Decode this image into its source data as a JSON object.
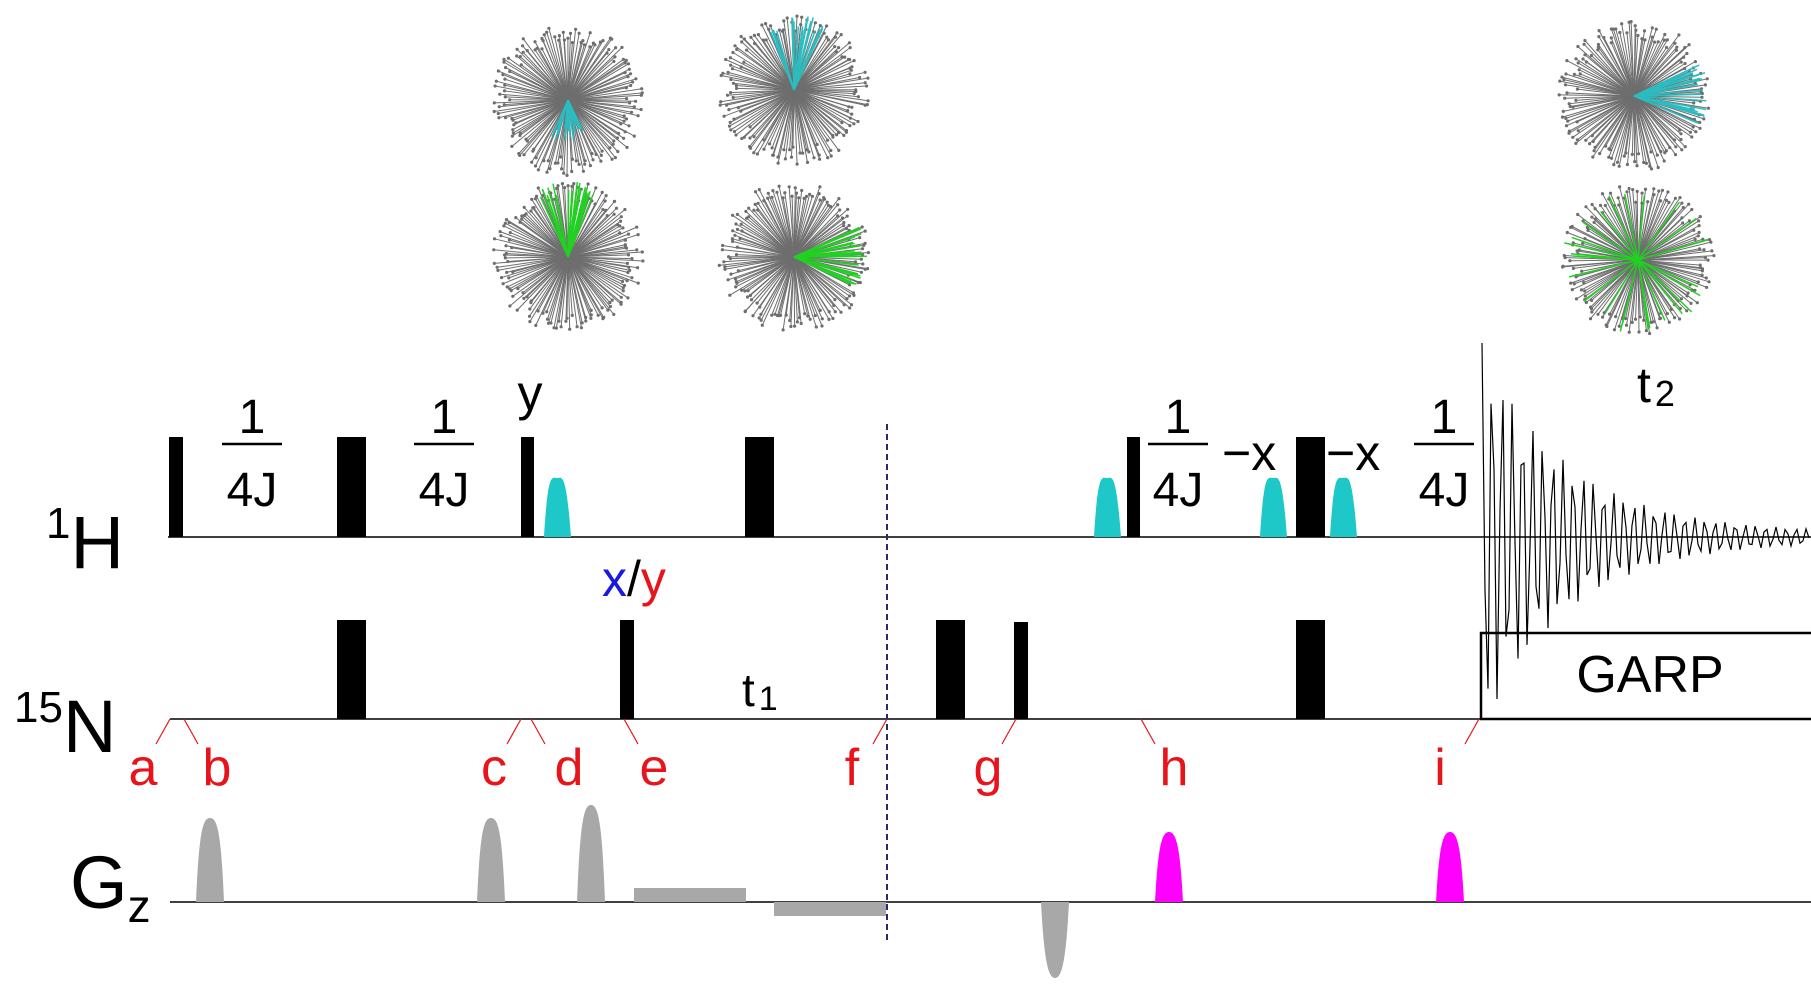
{
  "channels": {
    "h1": {
      "sup": "1",
      "main": "H"
    },
    "n15": {
      "sup": "15",
      "main": "N"
    },
    "gz": {
      "main": "G",
      "sub": "z"
    }
  },
  "delays": {
    "one": "1",
    "four_j": "4J",
    "t1": "t",
    "t1_sub": "1",
    "t2": "t",
    "t2_sub": "2"
  },
  "phases": {
    "y": "y",
    "x": "x",
    "slash": "/",
    "y_red": "y",
    "minus_x_1": "−x",
    "minus_x_2": "−x"
  },
  "decoupling": {
    "label": "GARP"
  },
  "points": [
    "a",
    "b",
    "c",
    "d",
    "e",
    "f",
    "g",
    "h",
    "i"
  ],
  "colors": {
    "pulse": "#000000",
    "selective_pulse": "#1ec8c8",
    "gradient": "#a8a8a8",
    "gradient_highlight": "#ff00ff",
    "point_label": "#e8141c",
    "phase_x": "#1a1adc",
    "vector_gray": "#6e6e6e",
    "vector_cyan": "#2cbcc0",
    "vector_green": "#22d022"
  },
  "vector_diagrams": [
    {
      "highlight": "cyan",
      "direction": "down"
    },
    {
      "highlight": "green",
      "direction": "up"
    },
    {
      "highlight": "cyan",
      "direction": "up"
    },
    {
      "highlight": "green",
      "direction": "right"
    },
    {
      "highlight": "cyan",
      "direction": "right"
    },
    {
      "highlight": "green",
      "direction": "scattered"
    }
  ]
}
